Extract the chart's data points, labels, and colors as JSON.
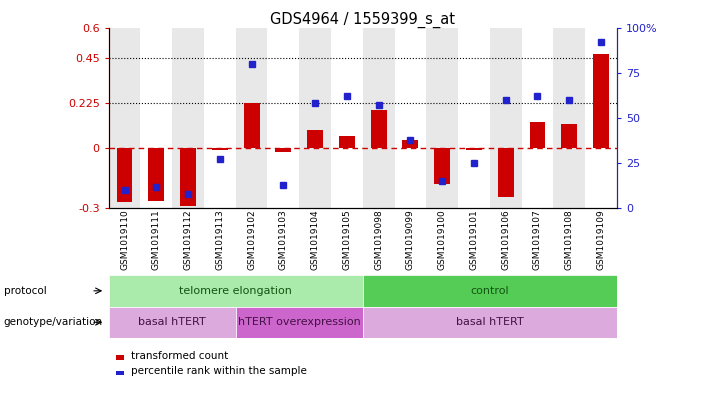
{
  "title": "GDS4964 / 1559399_s_at",
  "samples": [
    "GSM1019110",
    "GSM1019111",
    "GSM1019112",
    "GSM1019113",
    "GSM1019102",
    "GSM1019103",
    "GSM1019104",
    "GSM1019105",
    "GSM1019098",
    "GSM1019099",
    "GSM1019100",
    "GSM1019101",
    "GSM1019106",
    "GSM1019107",
    "GSM1019108",
    "GSM1019109"
  ],
  "transformed_count": [
    -0.27,
    -0.265,
    -0.29,
    -0.01,
    0.225,
    -0.02,
    0.09,
    0.06,
    0.19,
    0.04,
    -0.18,
    -0.01,
    -0.245,
    0.13,
    0.12,
    0.47
  ],
  "percentile_rank": [
    10,
    12,
    8,
    27,
    80,
    13,
    58,
    62,
    57,
    38,
    15,
    25,
    60,
    62,
    60,
    92
  ],
  "ylim_left": [
    -0.3,
    0.6
  ],
  "ylim_right": [
    0,
    100
  ],
  "yticks_left": [
    -0.3,
    0,
    0.225,
    0.45,
    0.6
  ],
  "ytick_labels_left": [
    "-0.3",
    "0",
    "0.225",
    "0.45",
    "0.6"
  ],
  "yticks_right": [
    0,
    25,
    50,
    75,
    100
  ],
  "ytick_labels_right": [
    "0",
    "25",
    "50",
    "75",
    "100%"
  ],
  "hlines": [
    0.225,
    0.45
  ],
  "bar_color": "#cc0000",
  "dot_color": "#2222cc",
  "zero_line_color": "#cc0000",
  "protocol_groups": [
    {
      "label": "telomere elongation",
      "start": 0,
      "end": 7,
      "color": "#aaeaaa"
    },
    {
      "label": "control",
      "start": 8,
      "end": 15,
      "color": "#55cc55"
    }
  ],
  "genotype_groups": [
    {
      "label": "basal hTERT",
      "start": 0,
      "end": 3,
      "color": "#ddaadd"
    },
    {
      "label": "hTERT overexpression",
      "start": 4,
      "end": 7,
      "color": "#cc66cc"
    },
    {
      "label": "basal hTERT",
      "start": 8,
      "end": 15,
      "color": "#ddaadd"
    }
  ],
  "legend_labels": [
    "transformed count",
    "percentile rank within the sample"
  ],
  "legend_colors": [
    "#cc0000",
    "#2222cc"
  ],
  "bg_even": "#e8e8e8",
  "bg_odd": "#ffffff",
  "label_protocol": "protocol",
  "label_genotype": "genotype/variation"
}
